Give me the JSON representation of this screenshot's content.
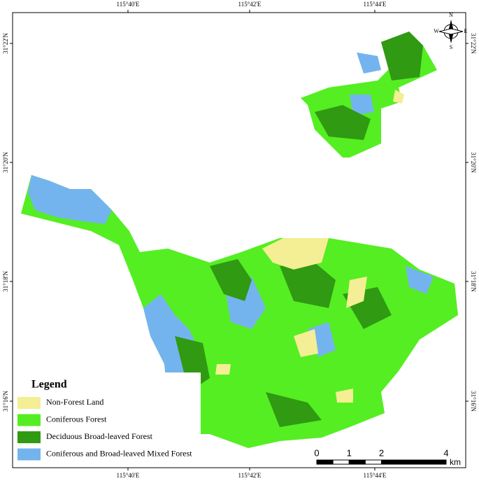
{
  "map": {
    "top_labels": [
      "115°40'E",
      "115°42'E",
      "115°44'E"
    ],
    "bottom_labels": [
      "115°40'E",
      "115°42'E",
      "115°44'E"
    ],
    "left_labels": [
      "31°22'N",
      "31°20'N",
      "31°18'N",
      "31°16'N"
    ],
    "right_labels": [
      "31°22'N",
      "31°20'N",
      "31°18'N",
      "31°16'N"
    ],
    "compass": {
      "n": "N",
      "e": "E",
      "s": "S",
      "w": "W"
    },
    "legend": {
      "title": "Legend",
      "items": [
        {
          "label": "Non-Forest Land",
          "color": "#f4ee94"
        },
        {
          "label": "Coniferous Forest",
          "color": "#55ee22"
        },
        {
          "label": "Deciduous Broad-leaved Forest",
          "color": "#2f9a12"
        },
        {
          "label": "Coniferous and Broad-leaved Mixed Forest",
          "color": "#74b4ee"
        }
      ]
    },
    "scale_bar": {
      "ticks": [
        0,
        1,
        2,
        4
      ],
      "unit": "km"
    }
  }
}
